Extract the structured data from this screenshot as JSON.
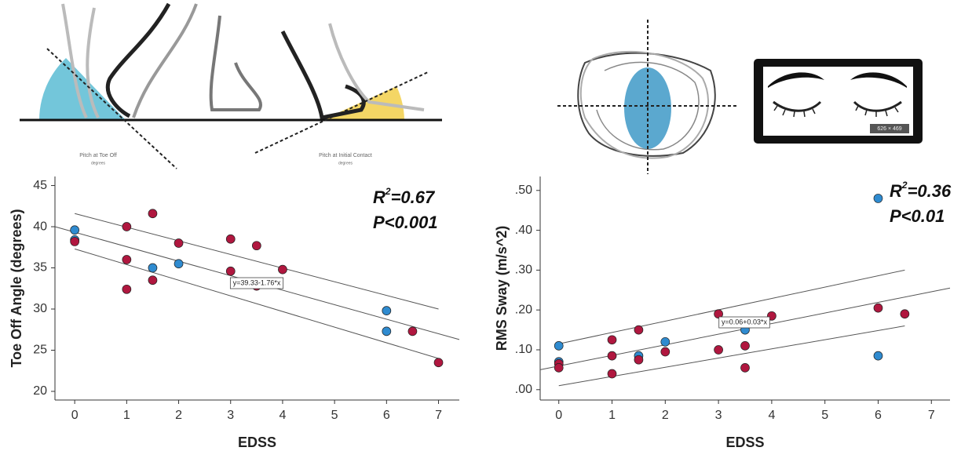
{
  "illustration": {
    "toe_off_caption": "Pitch at Toe Off",
    "toe_off_unit": "degrees",
    "contact_caption": "Pitch at Initial Contact",
    "contact_unit": "degrees",
    "image_size": "626 × 469"
  },
  "chart_data": [
    {
      "type": "scatter",
      "x_label": "EDSS",
      "y_label": "Toe Off Angle (degrees)",
      "stat_symbol": "R",
      "stat_power": "2",
      "stat_value": "=0.67",
      "p_label": "P<0.001",
      "equation": "y=39.33-1.76*x",
      "xlim": [
        -0.38,
        7.4
      ],
      "ylim": [
        18.95,
        46.1
      ],
      "xticks": [
        0,
        1,
        2,
        3,
        4,
        5,
        6,
        7
      ],
      "yticks": [
        20,
        25,
        30,
        35,
        40,
        45
      ],
      "series": [
        {
          "color": "#2f8bd0",
          "x": [
            0,
            0,
            1.5,
            2,
            6,
            6
          ],
          "values": [
            39.6,
            38.4,
            35,
            35.5,
            29.8,
            27.3
          ]
        },
        {
          "color": "#b0173f",
          "x": [
            0,
            1,
            1,
            1,
            1.5,
            1.5,
            2,
            3,
            3,
            3.5,
            3.5,
            4,
            6.5,
            7
          ],
          "values": [
            38.2,
            40,
            36,
            32.4,
            41.6,
            33.5,
            38,
            38.5,
            34.6,
            37.7,
            32.8,
            34.8,
            27.3,
            23.5
          ]
        }
      ],
      "fit_lines": [
        {
          "x": [
            -0.38,
            7.4
          ],
          "values": [
            40.0,
            26.3
          ]
        },
        {
          "x": [
            0,
            7
          ],
          "values": [
            41.6,
            30.0
          ]
        },
        {
          "x": [
            0,
            7
          ],
          "values": [
            37.3,
            24.0
          ]
        }
      ]
    },
    {
      "type": "scatter",
      "x_label": "EDSS",
      "y_label": "RMS Sway (m/s^2)",
      "stat_symbol": "R",
      "stat_power": "2",
      "stat_value": "=0.36",
      "p_label": "P<0.01",
      "equation": "y=0.06+0.03*x",
      "xlim": [
        -0.35,
        7.35
      ],
      "ylim": [
        -0.026,
        0.535
      ],
      "xticks": [
        0,
        1,
        2,
        3,
        4,
        5,
        6,
        7
      ],
      "yticks": [
        {
          "value": 0,
          "label": ".00"
        },
        {
          "value": 0.1,
          "label": ".10"
        },
        {
          "value": 0.2,
          "label": ".20"
        },
        {
          "value": 0.3,
          "label": ".30"
        },
        {
          "value": 0.4,
          "label": ".40"
        },
        {
          "value": 0.5,
          "label": ".50"
        }
      ],
      "series": [
        {
          "color": "#2f8bd0",
          "x": [
            0,
            0,
            1.5,
            2,
            3.5,
            6,
            6
          ],
          "values": [
            0.11,
            0.07,
            0.085,
            0.12,
            0.15,
            0.48,
            0.085
          ]
        },
        {
          "color": "#b0173f",
          "x": [
            0,
            0,
            1,
            1,
            1,
            1.5,
            1.5,
            2,
            3,
            3,
            3.5,
            3.5,
            4,
            6,
            6.5
          ],
          "values": [
            0.065,
            0.055,
            0.125,
            0.085,
            0.04,
            0.15,
            0.075,
            0.095,
            0.19,
            0.1,
            0.11,
            0.055,
            0.185,
            0.205,
            0.19
          ]
        }
      ],
      "fit_lines": [
        {
          "x": [
            -0.35,
            7.35
          ],
          "values": [
            0.05,
            0.255
          ]
        },
        {
          "x": [
            0,
            6.5
          ],
          "values": [
            0.115,
            0.3
          ]
        },
        {
          "x": [
            0,
            6.5
          ],
          "values": [
            0.01,
            0.16
          ]
        }
      ]
    }
  ]
}
